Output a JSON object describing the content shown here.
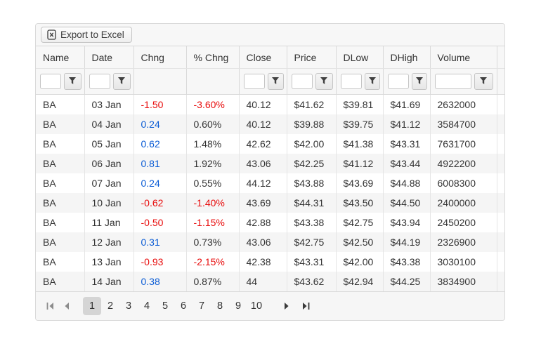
{
  "grid": {
    "toolbar": {
      "export_label": "Export to Excel"
    },
    "columns": [
      {
        "field": "name",
        "label": "Name",
        "filterable": true,
        "wide_filter": false
      },
      {
        "field": "date",
        "label": "Date",
        "filterable": true,
        "wide_filter": false
      },
      {
        "field": "chng",
        "label": "Chng",
        "filterable": false,
        "wide_filter": false
      },
      {
        "field": "pct_chng",
        "label": "% Chng",
        "filterable": false,
        "wide_filter": false
      },
      {
        "field": "close",
        "label": "Close",
        "filterable": true,
        "wide_filter": false
      },
      {
        "field": "price",
        "label": "Price",
        "filterable": true,
        "wide_filter": false
      },
      {
        "field": "dlow",
        "label": "DLow",
        "filterable": true,
        "wide_filter": false
      },
      {
        "field": "dhigh",
        "label": "DHigh",
        "filterable": true,
        "wide_filter": false
      },
      {
        "field": "volume",
        "label": "Volume",
        "filterable": true,
        "wide_filter": true
      }
    ],
    "rows": [
      {
        "name": "BA",
        "date": "03 Jan",
        "chng": "-1.50",
        "pct_chng": "-3.60%",
        "close": "40.12",
        "price": "$41.62",
        "dlow": "$39.81",
        "dhigh": "$41.69",
        "volume": "2632000",
        "trend": "down"
      },
      {
        "name": "BA",
        "date": "04 Jan",
        "chng": "0.24",
        "pct_chng": "0.60%",
        "close": "40.12",
        "price": "$39.88",
        "dlow": "$39.75",
        "dhigh": "$41.12",
        "volume": "3584700",
        "trend": "up"
      },
      {
        "name": "BA",
        "date": "05 Jan",
        "chng": "0.62",
        "pct_chng": "1.48%",
        "close": "42.62",
        "price": "$42.00",
        "dlow": "$41.38",
        "dhigh": "$43.31",
        "volume": "7631700",
        "trend": "up"
      },
      {
        "name": "BA",
        "date": "06 Jan",
        "chng": "0.81",
        "pct_chng": "1.92%",
        "close": "43.06",
        "price": "$42.25",
        "dlow": "$41.12",
        "dhigh": "$43.44",
        "volume": "4922200",
        "trend": "up"
      },
      {
        "name": "BA",
        "date": "07 Jan",
        "chng": "0.24",
        "pct_chng": "0.55%",
        "close": "44.12",
        "price": "$43.88",
        "dlow": "$43.69",
        "dhigh": "$44.88",
        "volume": "6008300",
        "trend": "up"
      },
      {
        "name": "BA",
        "date": "10 Jan",
        "chng": "-0.62",
        "pct_chng": "-1.40%",
        "close": "43.69",
        "price": "$44.31",
        "dlow": "$43.50",
        "dhigh": "$44.50",
        "volume": "2400000",
        "trend": "down"
      },
      {
        "name": "BA",
        "date": "11 Jan",
        "chng": "-0.50",
        "pct_chng": "-1.15%",
        "close": "42.88",
        "price": "$43.38",
        "dlow": "$42.75",
        "dhigh": "$43.94",
        "volume": "2450200",
        "trend": "down"
      },
      {
        "name": "BA",
        "date": "12 Jan",
        "chng": "0.31",
        "pct_chng": "0.73%",
        "close": "43.06",
        "price": "$42.75",
        "dlow": "$42.50",
        "dhigh": "$44.19",
        "volume": "2326900",
        "trend": "up"
      },
      {
        "name": "BA",
        "date": "13 Jan",
        "chng": "-0.93",
        "pct_chng": "-2.15%",
        "close": "42.38",
        "price": "$43.31",
        "dlow": "$42.00",
        "dhigh": "$43.38",
        "volume": "3030100",
        "trend": "down"
      },
      {
        "name": "BA",
        "date": "14 Jan",
        "chng": "0.38",
        "pct_chng": "0.87%",
        "close": "44",
        "price": "$43.62",
        "dlow": "$42.94",
        "dhigh": "$44.25",
        "volume": "3834900",
        "trend": "up"
      }
    ],
    "pager": {
      "pages": [
        "1",
        "2",
        "3",
        "4",
        "5",
        "6",
        "7",
        "8",
        "9",
        "10"
      ],
      "current_page": "1",
      "first_enabled": false,
      "prev_enabled": false,
      "next_enabled": true,
      "last_enabled": true
    },
    "colors": {
      "negative_text": "#e80c0c",
      "positive_text": "#0b5cd5",
      "selected_page_bg": "#d5d5d5"
    }
  }
}
